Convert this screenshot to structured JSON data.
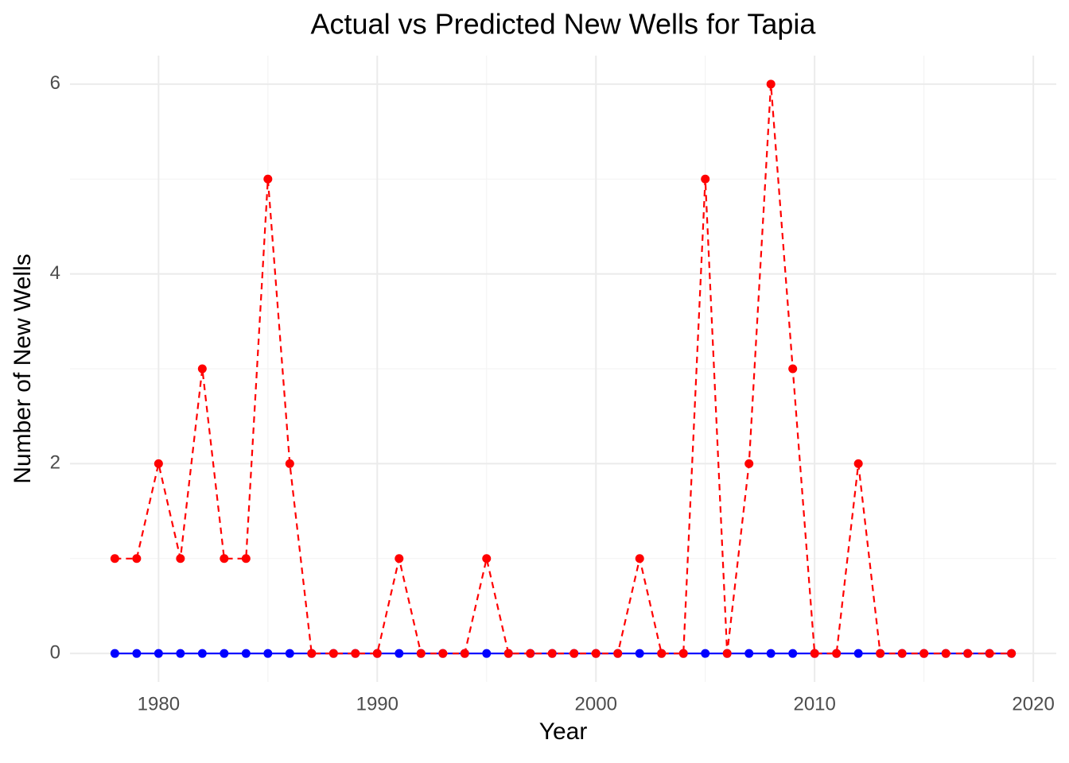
{
  "chart_data": {
    "type": "line",
    "title": "Actual vs Predicted New Wells for Tapia",
    "x_label": "Year",
    "y_label": "Number of New Wells",
    "x": [
      1978,
      1979,
      1980,
      1981,
      1982,
      1983,
      1984,
      1985,
      1986,
      1987,
      1988,
      1989,
      1990,
      1991,
      1992,
      1993,
      1994,
      1995,
      1996,
      1997,
      1998,
      1999,
      2000,
      2001,
      2002,
      2003,
      2004,
      2005,
      2006,
      2007,
      2008,
      2009,
      2010,
      2011,
      2012,
      2013,
      2014,
      2015,
      2016,
      2017,
      2018,
      2019
    ],
    "series": [
      {
        "color": "#0000ff",
        "dashed": false,
        "values": [
          0,
          0,
          0,
          0,
          0,
          0,
          0,
          0,
          0,
          0,
          0,
          0,
          0,
          0,
          0,
          0,
          0,
          0,
          0,
          0,
          0,
          0,
          0,
          0,
          0,
          0,
          0,
          0,
          0,
          0,
          0,
          0,
          0,
          0,
          0,
          0,
          0,
          0,
          0,
          0,
          0,
          0
        ]
      },
      {
        "color": "#ff0000",
        "dashed": true,
        "values": [
          1,
          1,
          2,
          1,
          3,
          1,
          1,
          5,
          2,
          0,
          0,
          0,
          0,
          1,
          0,
          0,
          0,
          1,
          0,
          0,
          0,
          0,
          0,
          0,
          1,
          0,
          0,
          5,
          0,
          2,
          6,
          3,
          0,
          0,
          2,
          0,
          0,
          0,
          0,
          0,
          0,
          0
        ]
      }
    ],
    "xlim": [
      1975.95,
      2021.05
    ],
    "xticks": [
      1980,
      1990,
      2000,
      2010,
      2020
    ],
    "ylim": [
      -0.3,
      6.3
    ],
    "yticks": [
      0,
      2,
      4,
      6
    ],
    "grid": true
  }
}
